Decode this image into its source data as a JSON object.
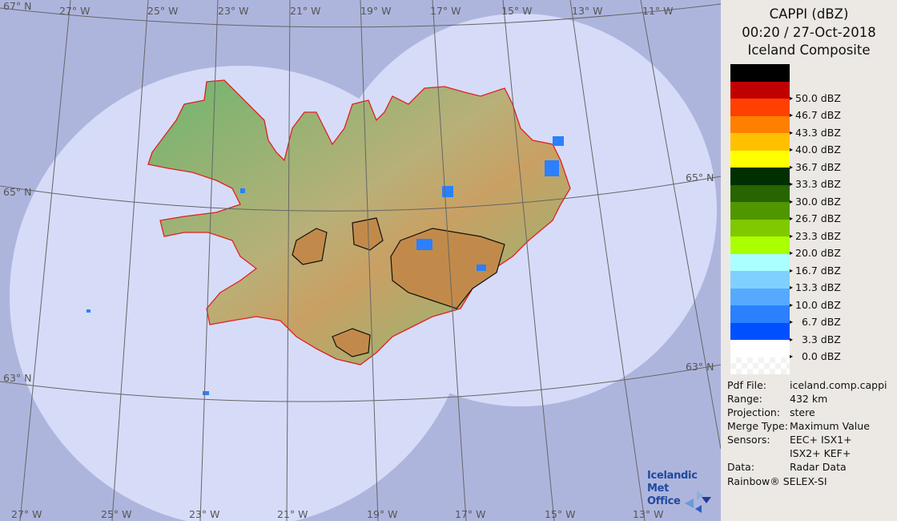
{
  "header": {
    "line1": "CAPPI (dBZ)",
    "line2": "00:20 / 27-Oct-2018",
    "line3": "Iceland Composite"
  },
  "legend": [
    {
      "color": "#000000",
      "label": ""
    },
    {
      "color": "#c00000",
      "label": "50.0 dBZ"
    },
    {
      "color": "#ff4000",
      "label": "46.7 dBZ"
    },
    {
      "color": "#ff8000",
      "label": "43.3 dBZ"
    },
    {
      "color": "#ffc000",
      "label": "40.0 dBZ"
    },
    {
      "color": "#ffff00",
      "label": "36.7 dBZ"
    },
    {
      "color": "#003000",
      "label": "33.3 dBZ"
    },
    {
      "color": "#286400",
      "label": "30.0 dBZ"
    },
    {
      "color": "#509600",
      "label": "26.7 dBZ"
    },
    {
      "color": "#80c800",
      "label": "23.3 dBZ"
    },
    {
      "color": "#aaff00",
      "label": "20.0 dBZ"
    },
    {
      "color": "#aaffff",
      "label": "16.7 dBZ"
    },
    {
      "color": "#80d0ff",
      "label": "13.3 dBZ"
    },
    {
      "color": "#55aaff",
      "label": "10.0 dBZ"
    },
    {
      "color": "#2a80ff",
      "label": "  6.7 dBZ"
    },
    {
      "color": "#0050ff",
      "label": "  3.3 dBZ"
    },
    {
      "color": "#ffffff",
      "label": "  0.0 dBZ"
    },
    {
      "color": "#f2f2f2",
      "label": ""
    }
  ],
  "info": [
    {
      "key": "Pdf File:",
      "value": "iceland.comp.cappi"
    },
    {
      "key": "Range:",
      "value": "432 km"
    },
    {
      "key": "Projection:",
      "value": "stere"
    },
    {
      "key": "Merge Type:",
      "value": "Maximum Value"
    },
    {
      "key": "Sensors:",
      "value": "EEC+ ISX1+"
    },
    {
      "key": "",
      "value": "ISX2+ KEF+"
    },
    {
      "key": "Data:",
      "value": "Radar Data"
    }
  ],
  "credit": "Rainbow® SELEX-SI",
  "logo": {
    "line1": "Icelandic Met",
    "line2": "Office"
  },
  "graticule": {
    "top": [
      "27° W",
      "25° W",
      "23° W",
      "21° W",
      "19° W",
      "17° W",
      "15° W",
      "13° W",
      "11° W"
    ],
    "bottom": [
      "27° W",
      "25° W",
      "23° W",
      "21° W",
      "19° W",
      "17° W",
      "15° W",
      "13° W"
    ],
    "left": [
      "67° N",
      "65° N",
      "63° N"
    ],
    "right": [
      "65° N",
      "63° N"
    ]
  },
  "colors": {
    "outside_coverage": "#aeb5dd",
    "coverage": "#d6dcf8",
    "coastline": "#e02020",
    "panel": "#ece9e4"
  }
}
